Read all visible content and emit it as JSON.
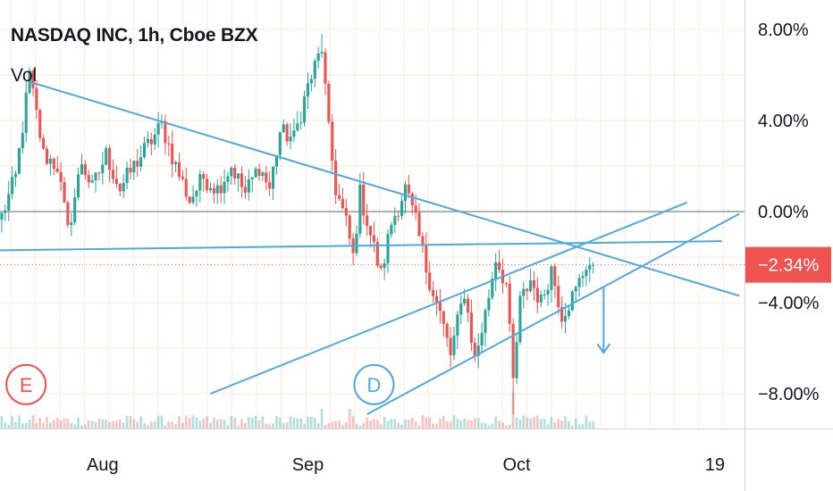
{
  "header": {
    "title": "NASDAQ INC, 1h, Cboe BZX",
    "volume_label": "Vol"
  },
  "chart_data": {
    "type": "candlestick",
    "symbol": "NASDAQ INC",
    "interval": "1h",
    "exchange": "Cboe BZX",
    "y_unit": "%",
    "ylim": [
      -8.8,
      8.8
    ],
    "y_ticks": [
      {
        "value": 8,
        "label": "8.00%"
      },
      {
        "value": 4,
        "label": "4.00%"
      },
      {
        "value": 0,
        "label": "0.00%"
      },
      {
        "value": -4,
        "label": "−4.00%"
      },
      {
        "value": -8,
        "label": "−8.00%"
      }
    ],
    "x_ticks": [
      {
        "index": 29,
        "label": "Aug"
      },
      {
        "index": 88,
        "label": "Sep"
      },
      {
        "index": 148,
        "label": "Oct"
      },
      {
        "index": 205,
        "label": "19"
      }
    ],
    "x_count": 214,
    "current_value": {
      "value": -2.34,
      "label": "−2.34%"
    },
    "grid": true,
    "colors": {
      "up": "#26a69a",
      "down": "#ef5350",
      "trendline": "#4fa8e0",
      "baseline": "#9598a1",
      "current_badge": "#ef5350",
      "grid": "#fce9dc"
    },
    "anchors": [
      {
        "i": 0,
        "v": -0.2
      },
      {
        "i": 4,
        "v": 1.5
      },
      {
        "i": 8,
        "v": 6.0
      },
      {
        "i": 12,
        "v": 2.5
      },
      {
        "i": 16,
        "v": 2.0
      },
      {
        "i": 19,
        "v": -0.9
      },
      {
        "i": 23,
        "v": 2.2
      },
      {
        "i": 26,
        "v": 1.0
      },
      {
        "i": 30,
        "v": 2.5
      },
      {
        "i": 34,
        "v": 1.0
      },
      {
        "i": 38,
        "v": 2.0
      },
      {
        "i": 42,
        "v": 2.9
      },
      {
        "i": 46,
        "v": 3.8
      },
      {
        "i": 50,
        "v": 2.0
      },
      {
        "i": 54,
        "v": 0.5
      },
      {
        "i": 58,
        "v": 1.5
      },
      {
        "i": 62,
        "v": 1.0
      },
      {
        "i": 66,
        "v": 2.0
      },
      {
        "i": 70,
        "v": 0.8
      },
      {
        "i": 74,
        "v": 2.0
      },
      {
        "i": 77,
        "v": 1.0
      },
      {
        "i": 80,
        "v": 3.5
      },
      {
        "i": 84,
        "v": 3.2
      },
      {
        "i": 88,
        "v": 5.5
      },
      {
        "i": 92,
        "v": 7.2
      },
      {
        "i": 94,
        "v": 3.5
      },
      {
        "i": 96,
        "v": 1.0
      },
      {
        "i": 99,
        "v": -0.5
      },
      {
        "i": 101,
        "v": -2.0
      },
      {
        "i": 103,
        "v": 0.8
      },
      {
        "i": 106,
        "v": -1.0
      },
      {
        "i": 109,
        "v": -2.8
      },
      {
        "i": 112,
        "v": -0.5
      },
      {
        "i": 116,
        "v": 1.0
      },
      {
        "i": 119,
        "v": -0.5
      },
      {
        "i": 122,
        "v": -2.5
      },
      {
        "i": 126,
        "v": -4.5
      },
      {
        "i": 129,
        "v": -6.3
      },
      {
        "i": 133,
        "v": -3.5
      },
      {
        "i": 136,
        "v": -6.5
      },
      {
        "i": 139,
        "v": -4.5
      },
      {
        "i": 142,
        "v": -2.0
      },
      {
        "i": 145,
        "v": -3.2
      },
      {
        "i": 147,
        "v": -7.5
      },
      {
        "i": 149,
        "v": -4.0
      },
      {
        "i": 152,
        "v": -3.0
      },
      {
        "i": 155,
        "v": -4.0
      },
      {
        "i": 158,
        "v": -2.5
      },
      {
        "i": 161,
        "v": -4.5
      },
      {
        "i": 165,
        "v": -3.5
      },
      {
        "i": 168,
        "v": -2.3
      },
      {
        "i": 170,
        "v": -2.34
      }
    ]
  },
  "drawings": {
    "trendlines": [
      {
        "i1": 8,
        "v1": 5.7,
        "i2": 212,
        "v2": -3.7
      },
      {
        "i1": -1,
        "v1": -1.7,
        "i2": 207,
        "v2": -1.3
      },
      {
        "i1": 60,
        "v1": -8.0,
        "i2": 197,
        "v2": 0.4
      },
      {
        "i1": 105,
        "v1": -8.9,
        "i2": 212,
        "v2": -0.1
      }
    ],
    "arrow": {
      "i": 173,
      "v_from": -3.3,
      "v_to": -6.2
    },
    "events": [
      {
        "letter": "E",
        "i": 7,
        "v": -7.6,
        "color": "#ef5350"
      },
      {
        "letter": "D",
        "i": 107,
        "v": -7.6,
        "color": "#4fa8e0"
      }
    ]
  }
}
